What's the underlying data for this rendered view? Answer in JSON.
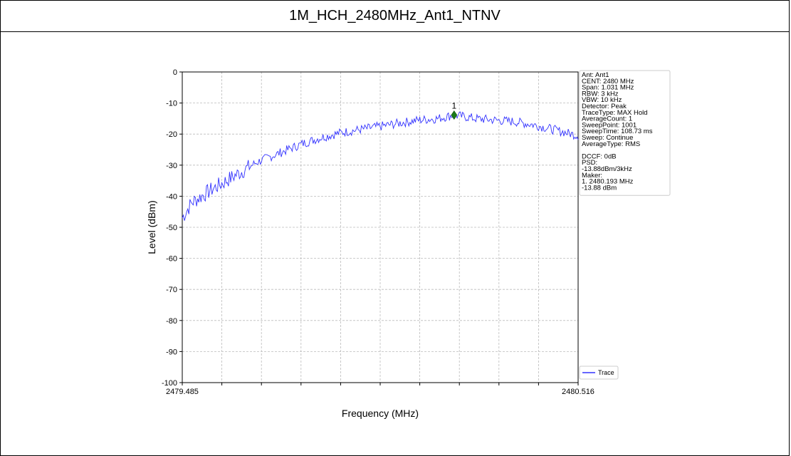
{
  "page": {
    "title": "1M_HCH_2480MHz_Ant1_NTNV"
  },
  "chart_data": {
    "type": "line",
    "xlabel": "Frequency (MHz)",
    "ylabel": "Level (dBm)",
    "xlim": [
      2479.485,
      2480.516
    ],
    "ylim": [
      -100,
      0
    ],
    "x_tick_labels": [
      "2479.485",
      "2480.516"
    ],
    "y_ticks": [
      0,
      -10,
      -20,
      -30,
      -40,
      -50,
      -60,
      -70,
      -80,
      -90,
      -100
    ],
    "grid": true,
    "series": [
      {
        "name": "Trace",
        "color": "#3333ff",
        "x": [
          2479.485,
          2479.51,
          2479.535,
          2479.56,
          2479.6,
          2479.64,
          2479.68,
          2479.72,
          2479.76,
          2479.8,
          2479.85,
          2479.9,
          2479.95,
          2480.0,
          2480.05,
          2480.1,
          2480.15,
          2480.193,
          2480.25,
          2480.3,
          2480.35,
          2480.4,
          2480.45,
          2480.5,
          2480.516
        ],
        "values": [
          -47,
          -42,
          -40,
          -38,
          -35,
          -32,
          -29,
          -27,
          -25,
          -23,
          -21,
          -19.5,
          -18.5,
          -17.5,
          -16.5,
          -15.5,
          -15,
          -13.88,
          -15,
          -15.5,
          -16,
          -17,
          -18.5,
          -20,
          -20.5
        ]
      }
    ],
    "marker": {
      "label": "1",
      "x": 2480.193,
      "y": -13.88,
      "color": "#1a7a1a"
    },
    "legend": {
      "entries": [
        "Trace"
      ],
      "position": "bottom-right"
    },
    "info_box": {
      "position": "top-right",
      "lines": [
        "Ant: Ant1",
        "CENT: 2480 MHz",
        "Span: 1.031 MHz",
        "RBW: 3 kHz",
        "VBW: 10 kHz",
        "Detector: Peak",
        "TraceType: MAX Hold",
        "AverageCount: 1",
        "SweepPoint: 1001",
        "SweepTime: 108.73 ms",
        "Sweep: Continue",
        "AverageType: RMS",
        "",
        "DCCF: 0dB",
        "PSD:",
        " -13.88dBm/3kHz",
        "Maker:",
        "1. 2480.193 MHz",
        "   -13.88 dBm"
      ]
    }
  }
}
